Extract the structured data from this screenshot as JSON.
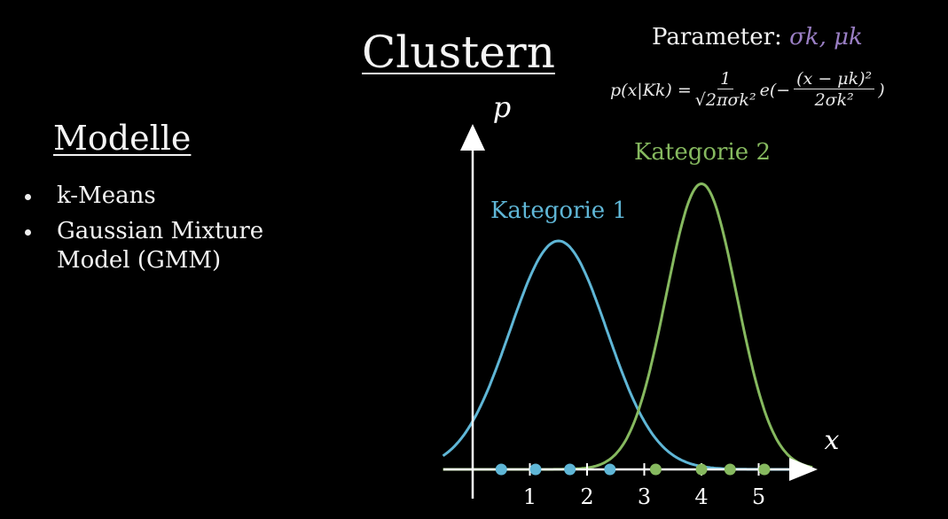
{
  "title": "Clustern",
  "left_panel": {
    "heading": "Modelle",
    "items": [
      "k-Means",
      "Gaussian Mixture Model (GMM)"
    ]
  },
  "parameter": {
    "label": "Parameter:",
    "symbols": "σk, μk"
  },
  "formula": {
    "lhs": "p(x|Kk) =",
    "frac1_num": "1",
    "frac1_den": "√2πσk²",
    "exp_prefix": "e(−",
    "frac2_num": "(x − μk)²",
    "frac2_den": "2σk²",
    "exp_suffix": ")"
  },
  "colors": {
    "category1": "#5fb6d6",
    "category2": "#86b95f",
    "axis": "#ffffff",
    "parameter_symbols": "#9a7fc4"
  },
  "chart_data": {
    "type": "line",
    "xlabel": "x",
    "ylabel": "p",
    "xlim": [
      -0.5,
      5.8
    ],
    "x_ticks": [
      1,
      2,
      3,
      4,
      5
    ],
    "series": [
      {
        "name": "Kategorie 1",
        "mean": 1.5,
        "sd": 0.85,
        "peak": 1.0,
        "color": "#5fb6d6"
      },
      {
        "name": "Kategorie 2",
        "mean": 4.0,
        "sd": 0.62,
        "peak": 1.25,
        "color": "#86b95f"
      }
    ],
    "points": [
      {
        "x": 0.5,
        "category": 1
      },
      {
        "x": 1.1,
        "category": 1
      },
      {
        "x": 1.7,
        "category": 1
      },
      {
        "x": 2.4,
        "category": 1
      },
      {
        "x": 3.2,
        "category": 2
      },
      {
        "x": 4.0,
        "category": 2
      },
      {
        "x": 4.5,
        "category": 2
      },
      {
        "x": 5.1,
        "category": 2
      }
    ]
  }
}
